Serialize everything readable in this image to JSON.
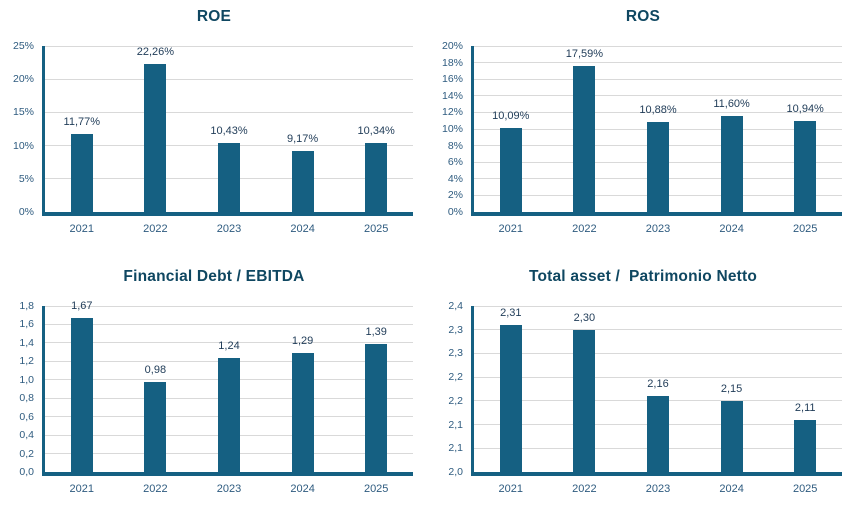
{
  "colors": {
    "background": "#FFFFFF",
    "bar": "#156082",
    "axis": "#156082",
    "gridline": "#D9D9D9",
    "tick_text": "#2E5B7F",
    "category_text": "#2E5B7F",
    "data_label_text": "#1F3B57",
    "title_text": "#0F4761"
  },
  "chart_data": [
    {
      "type": "bar",
      "title": "ROE",
      "categories": [
        "2021",
        "2022",
        "2023",
        "2024",
        "2025"
      ],
      "values": [
        11.77,
        22.26,
        10.43,
        9.17,
        10.34
      ],
      "data_labels": [
        "11,77%",
        "22,26%",
        "10,43%",
        "9,17%",
        "10,34%"
      ],
      "xlabel": "",
      "ylabel": "",
      "ylim": [
        0,
        25
      ],
      "grid": true,
      "legend": "none",
      "yticks": [
        {
          "value": 0,
          "label": "0%"
        },
        {
          "value": 5,
          "label": "5%"
        },
        {
          "value": 10,
          "label": "10%"
        },
        {
          "value": 15,
          "label": "15%"
        },
        {
          "value": 20,
          "label": "20%"
        },
        {
          "value": 25,
          "label": "25%"
        }
      ]
    },
    {
      "type": "bar",
      "title": "ROS",
      "categories": [
        "2021",
        "2022",
        "2023",
        "2024",
        "2025"
      ],
      "values": [
        10.09,
        17.59,
        10.88,
        11.6,
        10.94
      ],
      "data_labels": [
        "10,09%",
        "17,59%",
        "10,88%",
        "11,60%",
        "10,94%"
      ],
      "xlabel": "",
      "ylabel": "",
      "ylim": [
        0,
        20
      ],
      "grid": true,
      "legend": "none",
      "yticks": [
        {
          "value": 0,
          "label": "0%"
        },
        {
          "value": 2,
          "label": "2%"
        },
        {
          "value": 4,
          "label": "4%"
        },
        {
          "value": 6,
          "label": "6%"
        },
        {
          "value": 8,
          "label": "8%"
        },
        {
          "value": 10,
          "label": "10%"
        },
        {
          "value": 12,
          "label": "12%"
        },
        {
          "value": 14,
          "label": "14%"
        },
        {
          "value": 16,
          "label": "16%"
        },
        {
          "value": 18,
          "label": "18%"
        },
        {
          "value": 20,
          "label": "20%"
        }
      ]
    },
    {
      "type": "bar",
      "title": "Financial Debt / EBITDA",
      "categories": [
        "2021",
        "2022",
        "2023",
        "2024",
        "2025"
      ],
      "values": [
        1.67,
        0.98,
        1.24,
        1.29,
        1.39
      ],
      "data_labels": [
        "1,67",
        "0,98",
        "1,24",
        "1,29",
        "1,39"
      ],
      "xlabel": "",
      "ylabel": "",
      "ylim": [
        0,
        1.8
      ],
      "grid": true,
      "legend": "none",
      "yticks": [
        {
          "value": 0.0,
          "label": "0,0"
        },
        {
          "value": 0.2,
          "label": "0,2"
        },
        {
          "value": 0.4,
          "label": "0,4"
        },
        {
          "value": 0.6,
          "label": "0,6"
        },
        {
          "value": 0.8,
          "label": "0,8"
        },
        {
          "value": 1.0,
          "label": "1,0"
        },
        {
          "value": 1.2,
          "label": "1,2"
        },
        {
          "value": 1.4,
          "label": "1,4"
        },
        {
          "value": 1.6,
          "label": "1,6"
        },
        {
          "value": 1.8,
          "label": "1,8"
        }
      ]
    },
    {
      "type": "bar",
      "title": "Total asset /  Patrimonio Netto",
      "categories": [
        "2021",
        "2022",
        "2023",
        "2024",
        "2025"
      ],
      "values": [
        2.31,
        2.3,
        2.16,
        2.15,
        2.11
      ],
      "data_labels": [
        "2,31",
        "2,30",
        "2,16",
        "2,15",
        "2,11"
      ],
      "xlabel": "",
      "ylabel": "",
      "ylim": [
        2.0,
        2.35
      ],
      "grid": true,
      "legend": "none",
      "yticks": [
        {
          "value": 2.0,
          "label": "2,0"
        },
        {
          "value": 2.05,
          "label": "2,1"
        },
        {
          "value": 2.1,
          "label": "2,1"
        },
        {
          "value": 2.15,
          "label": "2,2"
        },
        {
          "value": 2.2,
          "label": "2,2"
        },
        {
          "value": 2.25,
          "label": "2,3"
        },
        {
          "value": 2.3,
          "label": "2,3"
        },
        {
          "value": 2.35,
          "label": "2,4"
        }
      ]
    }
  ]
}
